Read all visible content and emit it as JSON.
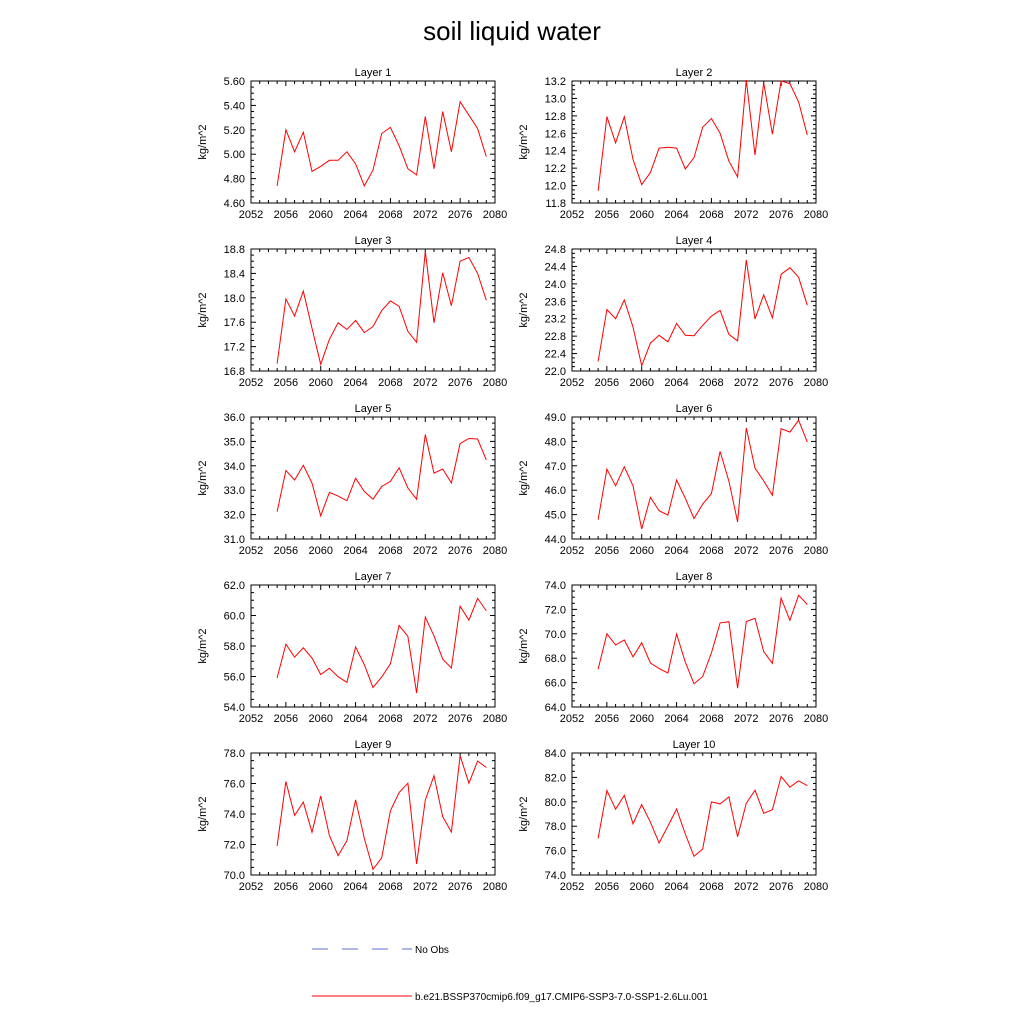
{
  "figure": {
    "title": "soil liquid water",
    "legend": [
      {
        "label": "No Obs",
        "color": "#5b6fd6",
        "style": "dashed"
      },
      {
        "label": "b.e21.BSSP370cmip6.f09_g17.CMIP6-SSP3-7.0-SSP1-2.6Lu.001",
        "color": "#ff0000",
        "style": "solid"
      }
    ]
  },
  "chart_data": [
    {
      "type": "line",
      "title": "Layer 1",
      "ylabel": "kg/m^2",
      "xlim": [
        2052,
        2080
      ],
      "x_ticks": [
        "2052",
        "2056",
        "2060",
        "2064",
        "2068",
        "2072",
        "2076",
        "2080"
      ],
      "ylim": [
        4.6,
        5.6
      ],
      "y_ticks": [
        "4.60",
        "4.80",
        "5.00",
        "5.20",
        "5.40",
        "5.60"
      ],
      "series": [
        {
          "color": "#ff0000",
          "x": [
            2055,
            2056,
            2057,
            2058,
            2059,
            2060,
            2061,
            2062,
            2063,
            2064,
            2065,
            2066,
            2067,
            2068,
            2069,
            2070,
            2071,
            2072,
            2073,
            2074,
            2075,
            2076,
            2077,
            2078,
            2079
          ],
          "values": [
            4.74,
            5.2,
            5.02,
            5.18,
            4.86,
            4.9,
            4.95,
            4.95,
            5.02,
            4.92,
            4.74,
            4.87,
            5.17,
            5.22,
            5.07,
            4.88,
            4.83,
            5.31,
            4.88,
            5.35,
            5.02,
            5.43,
            5.32,
            5.21,
            4.98
          ]
        }
      ]
    },
    {
      "type": "line",
      "title": "Layer 2",
      "ylabel": "kg/m^2",
      "xlim": [
        2052,
        2080
      ],
      "x_ticks": [
        "2052",
        "2056",
        "2060",
        "2064",
        "2068",
        "2072",
        "2076",
        "2080"
      ],
      "ylim": [
        11.8,
        13.2
      ],
      "y_ticks": [
        "11.8",
        "12.0",
        "12.2",
        "12.4",
        "12.6",
        "12.8",
        "13.0",
        "13.2"
      ],
      "series": [
        {
          "color": "#ff0000",
          "x": [
            2055,
            2056,
            2057,
            2058,
            2059,
            2060,
            2061,
            2062,
            2063,
            2064,
            2065,
            2066,
            2067,
            2068,
            2069,
            2070,
            2071,
            2072,
            2073,
            2074,
            2075,
            2076,
            2077,
            2078,
            2079
          ],
          "values": [
            11.94,
            12.79,
            12.49,
            12.79,
            12.3,
            12.01,
            12.15,
            12.43,
            12.44,
            12.43,
            12.19,
            12.32,
            12.67,
            12.77,
            12.6,
            12.28,
            12.1,
            13.21,
            12.35,
            13.18,
            12.59,
            13.2,
            13.17,
            12.96,
            12.58
          ]
        }
      ]
    },
    {
      "type": "line",
      "title": "Layer 3",
      "ylabel": "kg/m^2",
      "xlim": [
        2052,
        2080
      ],
      "x_ticks": [
        "2052",
        "2056",
        "2060",
        "2064",
        "2068",
        "2072",
        "2076",
        "2080"
      ],
      "ylim": [
        16.8,
        18.8
      ],
      "y_ticks": [
        "16.8",
        "17.2",
        "17.6",
        "18.0",
        "18.4",
        "18.8"
      ],
      "series": [
        {
          "color": "#ff0000",
          "x": [
            2055,
            2056,
            2057,
            2058,
            2059,
            2060,
            2061,
            2062,
            2063,
            2064,
            2065,
            2066,
            2067,
            2068,
            2069,
            2070,
            2071,
            2072,
            2073,
            2074,
            2075,
            2076,
            2077,
            2078,
            2079
          ],
          "values": [
            16.92,
            17.98,
            17.7,
            18.11,
            17.5,
            16.91,
            17.32,
            17.59,
            17.48,
            17.63,
            17.43,
            17.53,
            17.79,
            17.95,
            17.86,
            17.45,
            17.27,
            18.76,
            17.59,
            18.41,
            17.87,
            18.6,
            18.66,
            18.4,
            17.96
          ]
        }
      ]
    },
    {
      "type": "line",
      "title": "Layer 4",
      "ylabel": "kg/m^2",
      "xlim": [
        2052,
        2080
      ],
      "x_ticks": [
        "2052",
        "2056",
        "2060",
        "2064",
        "2068",
        "2072",
        "2076",
        "2080"
      ],
      "ylim": [
        22.0,
        24.8
      ],
      "y_ticks": [
        "22.0",
        "22.4",
        "22.8",
        "23.2",
        "23.6",
        "24.0",
        "24.4",
        "24.8"
      ],
      "series": [
        {
          "color": "#ff0000",
          "x": [
            2055,
            2056,
            2057,
            2058,
            2059,
            2060,
            2061,
            2062,
            2063,
            2064,
            2065,
            2066,
            2067,
            2068,
            2069,
            2070,
            2071,
            2072,
            2073,
            2074,
            2075,
            2076,
            2077,
            2078,
            2079
          ],
          "values": [
            22.22,
            23.41,
            23.2,
            23.63,
            23.01,
            22.12,
            22.64,
            22.82,
            22.67,
            23.09,
            22.82,
            22.81,
            23.05,
            23.26,
            23.39,
            22.84,
            22.69,
            24.55,
            23.19,
            23.75,
            23.22,
            24.22,
            24.37,
            24.15,
            23.51
          ]
        }
      ]
    },
    {
      "type": "line",
      "title": "Layer 5",
      "ylabel": "kg/m^2",
      "xlim": [
        2052,
        2080
      ],
      "x_ticks": [
        "2052",
        "2056",
        "2060",
        "2064",
        "2068",
        "2072",
        "2076",
        "2080"
      ],
      "ylim": [
        31.0,
        36.0
      ],
      "y_ticks": [
        "31.0",
        "32.0",
        "33.0",
        "34.0",
        "35.0",
        "36.0"
      ],
      "series": [
        {
          "color": "#ff0000",
          "x": [
            2055,
            2056,
            2057,
            2058,
            2059,
            2060,
            2061,
            2062,
            2063,
            2064,
            2065,
            2066,
            2067,
            2068,
            2069,
            2070,
            2071,
            2072,
            2073,
            2074,
            2075,
            2076,
            2077,
            2078,
            2079
          ],
          "values": [
            32.12,
            33.81,
            33.42,
            34.02,
            33.29,
            31.95,
            32.91,
            32.76,
            32.57,
            33.49,
            32.95,
            32.63,
            33.15,
            33.36,
            33.92,
            33.09,
            32.63,
            35.28,
            33.7,
            33.87,
            33.3,
            34.91,
            35.12,
            35.1,
            34.24
          ]
        }
      ]
    },
    {
      "type": "line",
      "title": "Layer 6",
      "ylabel": "kg/m^2",
      "xlim": [
        2052,
        2080
      ],
      "x_ticks": [
        "2052",
        "2056",
        "2060",
        "2064",
        "2068",
        "2072",
        "2076",
        "2080"
      ],
      "ylim": [
        44.0,
        49.0
      ],
      "y_ticks": [
        "44.0",
        "45.0",
        "46.0",
        "47.0",
        "48.0",
        "49.0"
      ],
      "series": [
        {
          "color": "#ff0000",
          "x": [
            2055,
            2056,
            2057,
            2058,
            2059,
            2060,
            2061,
            2062,
            2063,
            2064,
            2065,
            2066,
            2067,
            2068,
            2069,
            2070,
            2071,
            2072,
            2073,
            2074,
            2075,
            2076,
            2077,
            2078,
            2079
          ],
          "values": [
            44.79,
            46.86,
            46.18,
            46.96,
            46.18,
            44.41,
            45.71,
            45.16,
            44.98,
            46.42,
            45.67,
            44.84,
            45.43,
            45.86,
            47.59,
            46.37,
            44.7,
            48.55,
            46.9,
            46.38,
            45.79,
            48.52,
            48.38,
            48.87,
            47.97
          ]
        }
      ]
    },
    {
      "type": "line",
      "title": "Layer 7",
      "ylabel": "kg/m^2",
      "xlim": [
        2052,
        2080
      ],
      "x_ticks": [
        "2052",
        "2056",
        "2060",
        "2064",
        "2068",
        "2072",
        "2076",
        "2080"
      ],
      "ylim": [
        54.0,
        62.0
      ],
      "y_ticks": [
        "54.0",
        "56.0",
        "58.0",
        "60.0",
        "62.0"
      ],
      "series": [
        {
          "color": "#ff0000",
          "x": [
            2055,
            2056,
            2057,
            2058,
            2059,
            2060,
            2061,
            2062,
            2063,
            2064,
            2065,
            2066,
            2067,
            2068,
            2069,
            2070,
            2071,
            2072,
            2073,
            2074,
            2075,
            2076,
            2077,
            2078,
            2079
          ],
          "values": [
            55.9,
            58.12,
            57.27,
            57.88,
            57.21,
            56.13,
            56.54,
            55.99,
            55.61,
            57.94,
            56.78,
            55.28,
            55.97,
            56.83,
            59.35,
            58.63,
            54.92,
            59.89,
            58.66,
            57.14,
            56.55,
            60.61,
            59.7,
            61.12,
            60.3
          ]
        }
      ]
    },
    {
      "type": "line",
      "title": "Layer 8",
      "ylabel": "kg/m^2",
      "xlim": [
        2052,
        2080
      ],
      "x_ticks": [
        "2052",
        "2056",
        "2060",
        "2064",
        "2068",
        "2072",
        "2076",
        "2080"
      ],
      "ylim": [
        64.0,
        74.0
      ],
      "y_ticks": [
        "64.0",
        "66.0",
        "68.0",
        "70.0",
        "72.0",
        "74.0"
      ],
      "series": [
        {
          "color": "#ff0000",
          "x": [
            2055,
            2056,
            2057,
            2058,
            2059,
            2060,
            2061,
            2062,
            2063,
            2064,
            2065,
            2066,
            2067,
            2068,
            2069,
            2070,
            2071,
            2072,
            2073,
            2074,
            2075,
            2076,
            2077,
            2078,
            2079
          ],
          "values": [
            67.1,
            70.01,
            69.08,
            69.49,
            68.11,
            69.27,
            67.61,
            67.15,
            66.79,
            69.98,
            67.68,
            65.91,
            66.5,
            68.43,
            70.89,
            70.99,
            65.54,
            71.01,
            71.27,
            68.55,
            67.57,
            72.93,
            71.11,
            73.16,
            72.4
          ]
        }
      ]
    },
    {
      "type": "line",
      "title": "Layer 9",
      "ylabel": "kg/m^2",
      "xlim": [
        2052,
        2080
      ],
      "x_ticks": [
        "2052",
        "2056",
        "2060",
        "2064",
        "2068",
        "2072",
        "2076",
        "2080"
      ],
      "ylim": [
        70.0,
        78.0
      ],
      "y_ticks": [
        "70.0",
        "72.0",
        "74.0",
        "76.0",
        "78.0"
      ],
      "series": [
        {
          "color": "#ff0000",
          "x": [
            2055,
            2056,
            2057,
            2058,
            2059,
            2060,
            2061,
            2062,
            2063,
            2064,
            2065,
            2066,
            2067,
            2068,
            2069,
            2070,
            2071,
            2072,
            2073,
            2074,
            2075,
            2076,
            2077,
            2078,
            2079
          ],
          "values": [
            71.9,
            76.13,
            73.91,
            74.78,
            72.8,
            75.18,
            72.59,
            71.27,
            72.25,
            74.93,
            72.41,
            70.37,
            71.13,
            74.21,
            75.41,
            76.02,
            70.72,
            74.91,
            76.51,
            73.82,
            72.81,
            77.82,
            76.02,
            77.47,
            77.05
          ]
        }
      ]
    },
    {
      "type": "line",
      "title": "Layer 10",
      "ylabel": "kg/m^2",
      "xlim": [
        2052,
        2080
      ],
      "x_ticks": [
        "2052",
        "2056",
        "2060",
        "2064",
        "2068",
        "2072",
        "2076",
        "2080"
      ],
      "ylim": [
        74.0,
        84.0
      ],
      "y_ticks": [
        "74.0",
        "76.0",
        "78.0",
        "80.0",
        "82.0",
        "84.0"
      ],
      "series": [
        {
          "color": "#ff0000",
          "x": [
            2055,
            2056,
            2057,
            2058,
            2059,
            2060,
            2061,
            2062,
            2063,
            2064,
            2065,
            2066,
            2067,
            2068,
            2069,
            2070,
            2071,
            2072,
            2073,
            2074,
            2075,
            2076,
            2077,
            2078,
            2079
          ],
          "values": [
            77.0,
            80.93,
            79.39,
            80.53,
            78.2,
            79.77,
            78.33,
            76.62,
            78.01,
            79.41,
            77.36,
            75.53,
            76.13,
            79.99,
            79.83,
            80.4,
            77.13,
            79.88,
            80.95,
            79.06,
            79.35,
            82.08,
            81.2,
            81.72,
            81.32
          ]
        }
      ]
    }
  ]
}
